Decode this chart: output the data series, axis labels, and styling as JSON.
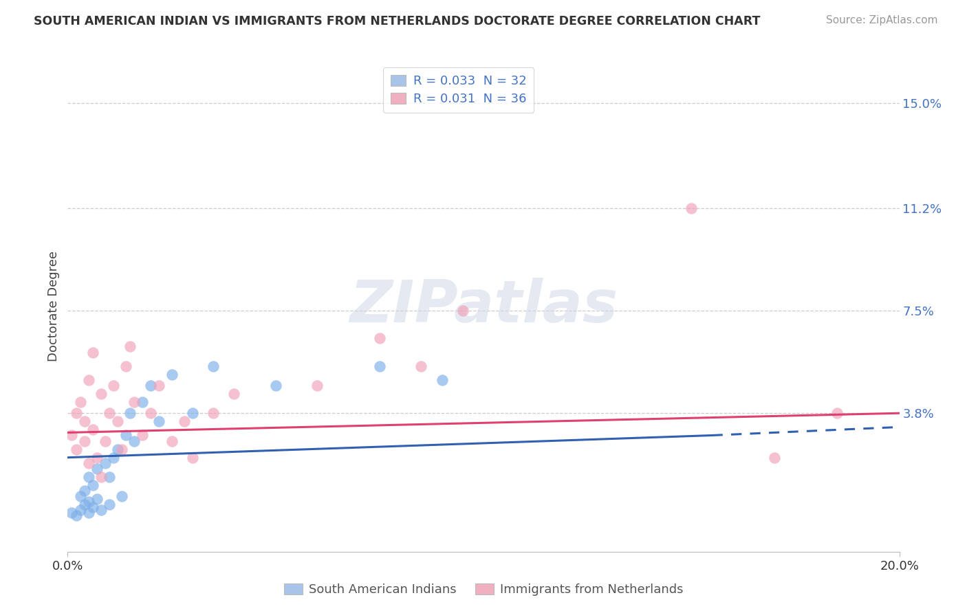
{
  "title": "SOUTH AMERICAN INDIAN VS IMMIGRANTS FROM NETHERLANDS DOCTORATE DEGREE CORRELATION CHART",
  "source": "Source: ZipAtlas.com",
  "ylabel": "Doctorate Degree",
  "xlim": [
    0.0,
    0.2
  ],
  "ylim": [
    -0.012,
    0.165
  ],
  "ytick_positions": [
    0.038,
    0.075,
    0.112,
    0.15
  ],
  "ytick_labels": [
    "3.8%",
    "7.5%",
    "11.2%",
    "15.0%"
  ],
  "xtick_positions": [
    0.0,
    0.2
  ],
  "xtick_labels": [
    "0.0%",
    "20.0%"
  ],
  "legend_label1": "R = 0.033  N = 32",
  "legend_label2": "R = 0.031  N = 36",
  "legend_color1": "#a8c4e8",
  "legend_color2": "#f0b0c0",
  "series1_color": "#7baee8",
  "series2_color": "#f0a0b8",
  "trend1_color": "#3060b0",
  "trend2_color": "#e04070",
  "watermark_text": "ZIPatlas",
  "blue_x": [
    0.001,
    0.002,
    0.003,
    0.003,
    0.004,
    0.004,
    0.005,
    0.005,
    0.005,
    0.006,
    0.006,
    0.007,
    0.007,
    0.008,
    0.009,
    0.01,
    0.01,
    0.011,
    0.012,
    0.013,
    0.014,
    0.015,
    0.016,
    0.018,
    0.02,
    0.022,
    0.025,
    0.03,
    0.035,
    0.05,
    0.075,
    0.09
  ],
  "blue_y": [
    0.002,
    0.001,
    0.003,
    0.008,
    0.005,
    0.01,
    0.002,
    0.006,
    0.015,
    0.004,
    0.012,
    0.007,
    0.018,
    0.003,
    0.02,
    0.005,
    0.015,
    0.022,
    0.025,
    0.008,
    0.03,
    0.038,
    0.028,
    0.042,
    0.048,
    0.035,
    0.052,
    0.038,
    0.055,
    0.048,
    0.055,
    0.05
  ],
  "pink_x": [
    0.001,
    0.002,
    0.002,
    0.003,
    0.004,
    0.004,
    0.005,
    0.005,
    0.006,
    0.006,
    0.007,
    0.008,
    0.008,
    0.009,
    0.01,
    0.011,
    0.012,
    0.013,
    0.014,
    0.015,
    0.016,
    0.018,
    0.02,
    0.022,
    0.025,
    0.028,
    0.03,
    0.035,
    0.04,
    0.06,
    0.075,
    0.085,
    0.095,
    0.15,
    0.17,
    0.185
  ],
  "pink_y": [
    0.03,
    0.025,
    0.038,
    0.042,
    0.028,
    0.035,
    0.02,
    0.05,
    0.032,
    0.06,
    0.022,
    0.015,
    0.045,
    0.028,
    0.038,
    0.048,
    0.035,
    0.025,
    0.055,
    0.062,
    0.042,
    0.03,
    0.038,
    0.048,
    0.028,
    0.035,
    0.022,
    0.038,
    0.045,
    0.048,
    0.065,
    0.055,
    0.075,
    0.112,
    0.022,
    0.038
  ]
}
